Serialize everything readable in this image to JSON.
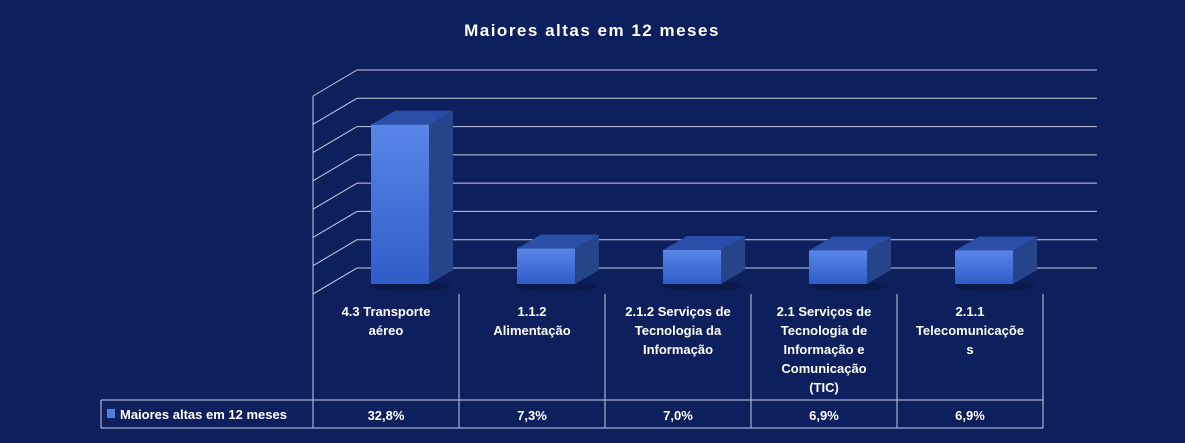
{
  "chart_data": {
    "type": "bar",
    "title": "Maiores altas em 12 meses",
    "categories": [
      [
        "4.3 Transporte",
        "aéreo"
      ],
      [
        "1.1.2",
        "Alimentação"
      ],
      [
        "2.1.2 Serviços de",
        "Tecnologia da",
        "Informação"
      ],
      [
        "2.1 Serviços de",
        "Tecnologia de",
        "Informação e",
        "Comunicação",
        "(TIC)"
      ],
      [
        "2.1.1",
        "Telecomunicaçõe",
        "s"
      ]
    ],
    "series": [
      {
        "name": "Maiores altas em 12 meses",
        "values": [
          32.8,
          7.3,
          7.0,
          6.9,
          6.9
        ],
        "labels": [
          "32,8%",
          "7,3%",
          "7,0%",
          "6,9%",
          "6,9%"
        ]
      }
    ],
    "ylim": [
      0,
      42
    ],
    "grid": true,
    "legend": "data-table-left",
    "colors": {
      "background": "#0d1f5c",
      "bar_front": "#3a6ad6",
      "bar_top": "#2b4ea8",
      "bar_side": "#264489",
      "grid": "#c8cfe3",
      "text": "#ffffff"
    }
  }
}
